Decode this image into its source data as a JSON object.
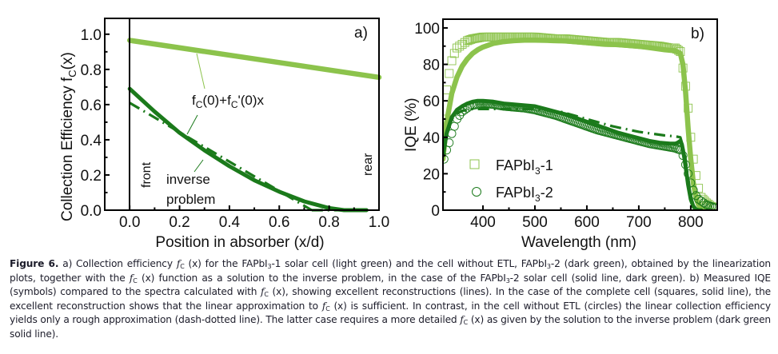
{
  "colors": {
    "light_green": "#8cc34c",
    "dark_green": "#1b7a1b",
    "axis": "#000000",
    "caption_text": "#1d1d2b"
  },
  "chart_data": [
    {
      "type": "line",
      "panel_label": "a)",
      "xlabel": "Position in absorber (x/d)",
      "ylabel": "Collection Efficiency f_C(x)",
      "ylabel_main": "Collection Efficiency f",
      "ylabel_sub": "C",
      "ylabel_tail": "(x)",
      "xlim": [
        -0.1,
        1.0
      ],
      "ylim": [
        0.0,
        1.09
      ],
      "xticks": [
        0.0,
        0.2,
        0.4,
        0.6,
        0.8,
        1.0
      ],
      "xtick_labels": [
        "0.0",
        "0.2",
        "0.4",
        "0.6",
        "0.8",
        "1.0"
      ],
      "yticks": [
        0.0,
        0.2,
        0.4,
        0.6,
        0.8,
        1.0
      ],
      "ytick_labels": [
        "0.0",
        "0.2",
        "0.4",
        "0.6",
        "0.8",
        "1.0"
      ],
      "vline_x": 0.0,
      "side_labels": {
        "front": "front",
        "rear": "rear"
      },
      "annotations": {
        "linear": {
          "parts": [
            "f",
            "C",
            "(0)+f",
            "C",
            "'(0)x"
          ],
          "text": "fC(0)+fC'(0)x"
        },
        "inverse_line1": "inverse",
        "inverse_line2": "problem"
      },
      "series": [
        {
          "name": "FAPbI3-1 linear",
          "style": "solid-thick",
          "color": "light_green",
          "x": [
            0.0,
            1.0
          ],
          "y": [
            0.965,
            0.755
          ]
        },
        {
          "name": "FAPbI3-2 inverse problem",
          "style": "solid",
          "color": "dark_green",
          "x": [
            0.0,
            0.1,
            0.2,
            0.3,
            0.4,
            0.5,
            0.6,
            0.7,
            0.8,
            0.86,
            0.95
          ],
          "y": [
            0.69,
            0.56,
            0.44,
            0.34,
            0.25,
            0.17,
            0.105,
            0.05,
            0.012,
            0.0,
            0.0
          ]
        },
        {
          "name": "FAPbI3-2 linear",
          "style": "dash-dot",
          "color": "dark_green",
          "x": [
            0.0,
            0.73
          ],
          "y": [
            0.61,
            0.0
          ]
        },
        {
          "name": "FAPbI3-2 linear zero",
          "style": "dash-dot",
          "color": "dark_green",
          "x": [
            0.73,
            0.95
          ],
          "y": [
            0.0,
            0.0
          ]
        }
      ]
    },
    {
      "type": "line",
      "panel_label": "b)",
      "xlabel": "Wavelength (nm)",
      "ylabel": "IQE (%)",
      "xlim": [
        323,
        851
      ],
      "ylim": [
        0,
        104.8
      ],
      "xticks": [
        400,
        500,
        600,
        700,
        800
      ],
      "xtick_labels": [
        "400",
        "500",
        "600",
        "700",
        "800"
      ],
      "yticks": [
        0,
        20,
        40,
        60,
        80,
        100
      ],
      "ytick_labels": [
        "0",
        "20",
        "40",
        "60",
        "80",
        "100"
      ],
      "legend": {
        "position": "bottom-left",
        "entries": [
          {
            "marker": "square",
            "color": "light_green",
            "base": "FAPbI",
            "sub": "3",
            "tail": "-1"
          },
          {
            "marker": "circle",
            "color": "dark_green",
            "base": "FAPbI",
            "sub": "3",
            "tail": "-2"
          }
        ]
      },
      "series": [
        {
          "name": "FAPbI3-1 measured",
          "style": "squares",
          "color": "light_green",
          "x": [
            325,
            330,
            335,
            340,
            345,
            350,
            355,
            360,
            365,
            370,
            380,
            390,
            400,
            420,
            440,
            460,
            480,
            500,
            520,
            540,
            560,
            580,
            600,
            620,
            640,
            660,
            680,
            700,
            720,
            740,
            760,
            770,
            780,
            785,
            790,
            795,
            800,
            805,
            810,
            815,
            820,
            830,
            840,
            850
          ],
          "y": [
            50,
            66,
            75,
            82,
            86,
            89,
            90,
            91,
            92,
            93,
            94,
            94.5,
            95,
            95,
            95,
            95,
            95,
            95,
            94.5,
            94,
            94,
            93.5,
            93,
            92.5,
            92,
            92,
            91.5,
            91,
            90.5,
            90,
            89,
            89,
            87,
            78,
            68,
            56,
            40,
            28,
            19,
            12,
            7,
            4,
            2,
            1
          ]
        },
        {
          "name": "FAPbI3-1 calculated",
          "style": "solid-thick",
          "color": "light_green",
          "x": [
            323,
            330,
            340,
            350,
            360,
            370,
            380,
            390,
            400,
            420,
            440,
            460,
            480,
            500,
            550,
            600,
            650,
            700,
            750,
            770,
            780,
            785,
            790,
            795,
            800,
            805,
            810,
            815,
            820,
            830
          ],
          "y": [
            28,
            48,
            64,
            73,
            79,
            83,
            86,
            88,
            89.5,
            91.5,
            92.5,
            93,
            93.3,
            93.3,
            93,
            92,
            91,
            90,
            88,
            87.5,
            86,
            80,
            65,
            45,
            28,
            15,
            7,
            3,
            1,
            0
          ]
        },
        {
          "name": "FAPbI3-2 measured",
          "style": "circles",
          "color": "dark_green",
          "x": [
            325,
            330,
            335,
            340,
            345,
            350,
            355,
            360,
            365,
            370,
            375,
            380,
            390,
            400,
            420,
            440,
            460,
            480,
            500,
            520,
            540,
            560,
            580,
            600,
            620,
            640,
            660,
            680,
            700,
            720,
            740,
            760,
            770,
            780,
            785,
            790,
            795,
            800,
            805,
            810,
            815,
            820,
            825,
            830,
            840,
            850
          ],
          "y": [
            28,
            33,
            37,
            42,
            46,
            50,
            52,
            54,
            55,
            56,
            57,
            57.5,
            58,
            58.5,
            58,
            57,
            56.5,
            56,
            55,
            53.5,
            52,
            50,
            48,
            46,
            44,
            42.5,
            41,
            39.5,
            38,
            36.5,
            35.5,
            34.5,
            34,
            33,
            30,
            25,
            20,
            15,
            11,
            8,
            6,
            5,
            4,
            3,
            2,
            1
          ]
        },
        {
          "name": "FAPbI3-2 calculated (inverse problem)",
          "style": "solid",
          "color": "dark_green",
          "x": [
            323,
            330,
            340,
            350,
            360,
            370,
            380,
            390,
            400,
            420,
            440,
            460,
            480,
            500,
            520,
            540,
            560,
            580,
            600,
            620,
            640,
            660,
            680,
            700,
            720,
            740,
            760,
            770,
            775,
            780,
            783,
            787,
            790,
            795,
            800,
            805,
            810,
            815,
            820
          ],
          "y": [
            30,
            42,
            51,
            55,
            57,
            58.5,
            59.5,
            60,
            60,
            59.5,
            58.5,
            58,
            57.5,
            57,
            55.5,
            54,
            52.5,
            50.5,
            48.5,
            46.5,
            44.5,
            42.5,
            41,
            39.5,
            38,
            37,
            36.5,
            36.5,
            37,
            38,
            36,
            30,
            24,
            14,
            6,
            2,
            0.5,
            0,
            0
          ]
        },
        {
          "name": "FAPbI3-2 linear approximation",
          "style": "dash-dot",
          "color": "dark_green",
          "x": [
            330,
            340,
            350,
            360,
            370,
            380,
            400,
            450,
            500,
            550,
            600,
            650,
            700,
            750,
            770,
            780,
            785,
            790,
            795,
            800,
            805,
            810
          ],
          "y": [
            42,
            50,
            53,
            54.5,
            55,
            55.5,
            55.5,
            55.5,
            55.5,
            54,
            50,
            46,
            43,
            41,
            40.5,
            40,
            35,
            28,
            18,
            8,
            3,
            0.5
          ]
        }
      ]
    }
  ],
  "caption": {
    "label": "Figure 6.",
    "segments": [
      {
        "t": " a) Collection efficiency "
      },
      {
        "fc": true
      },
      {
        "t": " for the FAPbI"
      },
      {
        "sub": "3"
      },
      {
        "t": "-1 solar cell (light green) and the cell without ETL, FAPbI"
      },
      {
        "sub": "3"
      },
      {
        "t": "-2 (dark green), obtained by the linearization plots, together with the "
      },
      {
        "fc": true
      },
      {
        "t": " function as a solution to the inverse problem, in the case of the FAPbI"
      },
      {
        "sub": "3"
      },
      {
        "t": "-2 solar cell (solid line, dark green). b) Measured IQE (symbols) compared to the spectra calculated with "
      },
      {
        "fc": true
      },
      {
        "t": ", showing excellent reconstructions (lines). In the case of the complete cell (squares, solid line), the excellent reconstruction shows that the linear approximation to "
      },
      {
        "fc": true
      },
      {
        "t": " is sufficient. In contrast, in the cell without ETL (circles) the linear collection efficiency yields only a rough approximation (dash-dotted line). The latter case requires a more detailed "
      },
      {
        "fc": true
      },
      {
        "t": " as given by the solution to the inverse problem (dark green solid line)."
      }
    ],
    "fc_parts": {
      "f": "f",
      "sub": "C",
      "arg": " (x)"
    }
  }
}
